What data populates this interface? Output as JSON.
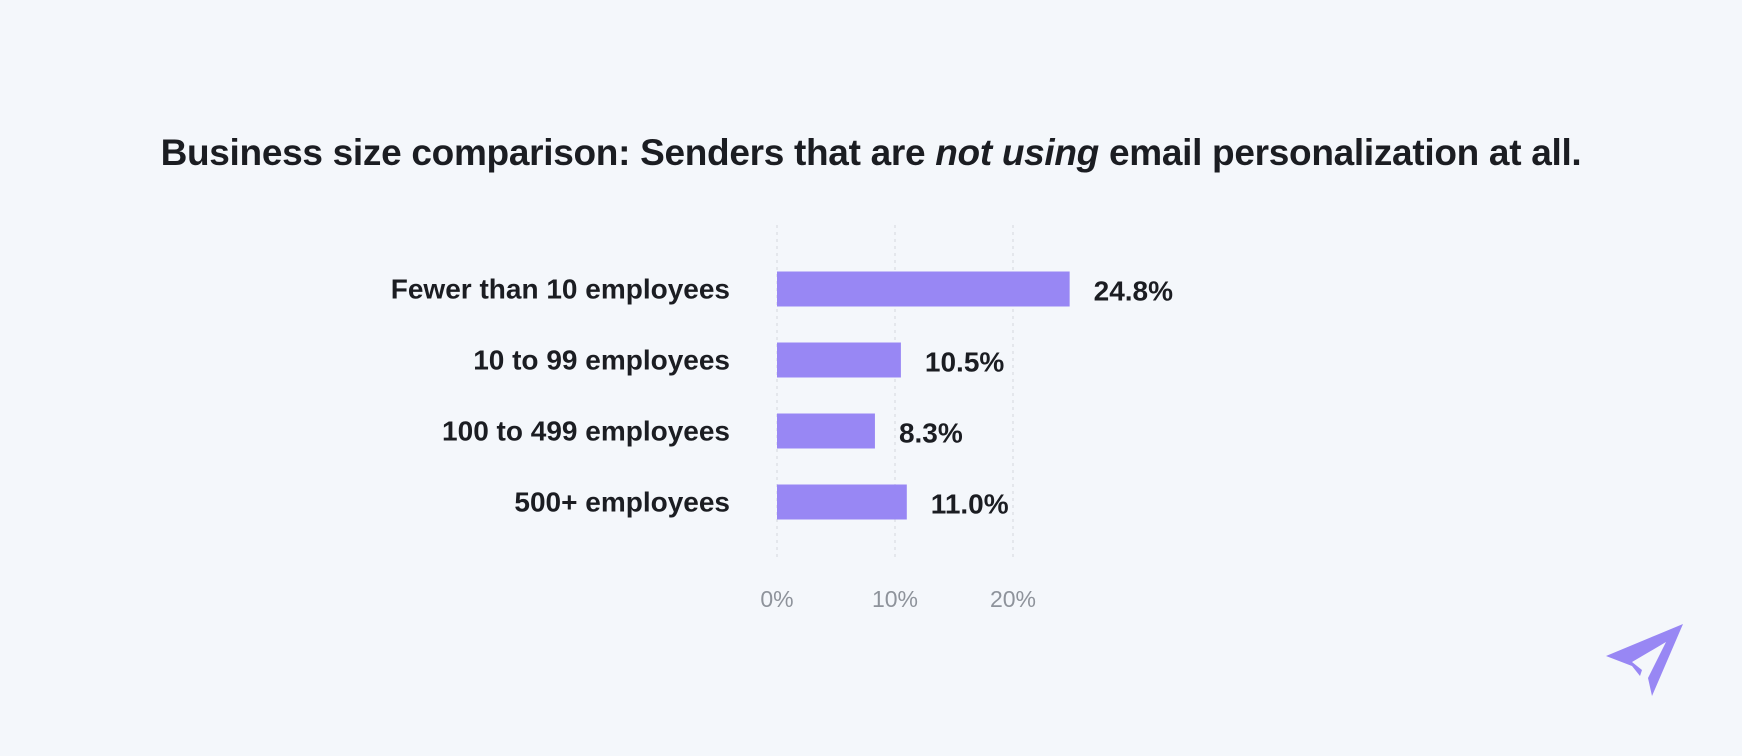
{
  "chart_data": {
    "type": "bar",
    "orientation": "horizontal",
    "title_parts": {
      "before": "Business size comparison: Senders that are ",
      "emphasis": "not using",
      "after": " email personalization at all."
    },
    "categories": [
      "Fewer than 10 employees",
      "10 to 99 employees",
      "100 to 499 employees",
      "500+ employees"
    ],
    "values": [
      24.8,
      10.5,
      8.3,
      11.0
    ],
    "value_labels": [
      "24.8%",
      "10.5%",
      "8.3%",
      "11.0%"
    ],
    "xticks": [
      0,
      10,
      20
    ],
    "xtick_labels": [
      "0%",
      "10%",
      "20%"
    ],
    "xlim": [
      0,
      20
    ],
    "xlabel": "",
    "ylabel": "",
    "grid": true,
    "legend": "none"
  },
  "colors": {
    "bar": "#9887f4",
    "grid": "#d9dde3",
    "logo": "#9887f4"
  },
  "icons": {
    "logo": "paper-plane-icon"
  }
}
